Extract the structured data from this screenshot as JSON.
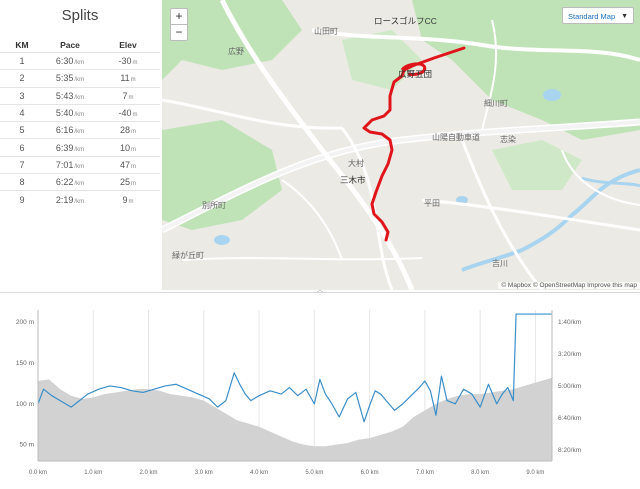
{
  "splits": {
    "title": "Splits",
    "columns": [
      "KM",
      "Pace",
      "Elev"
    ],
    "pace_unit": "/km",
    "elev_unit": "m",
    "rows": [
      {
        "km": "1",
        "pace": "6:30",
        "elev": "-30"
      },
      {
        "km": "2",
        "pace": "5:35",
        "elev": "11"
      },
      {
        "km": "3",
        "pace": "5:43",
        "elev": "7"
      },
      {
        "km": "4",
        "pace": "5:40",
        "elev": "-40"
      },
      {
        "km": "5",
        "pace": "6:16",
        "elev": "28"
      },
      {
        "km": "6",
        "pace": "6:39",
        "elev": "10"
      },
      {
        "km": "7",
        "pace": "7:01",
        "elev": "47"
      },
      {
        "km": "8",
        "pace": "6:22",
        "elev": "25"
      },
      {
        "km": "9",
        "pace": "2:19",
        "elev": "9"
      }
    ]
  },
  "map": {
    "zoom_in": "+",
    "zoom_out": "−",
    "map_type": "Standard Map",
    "attribution": "© Mapbox © OpenStreetMap Improve this map",
    "labels": [
      {
        "text": "ロースゴルフCC",
        "cls": "dark"
      },
      {
        "text": "山田町",
        "cls": ""
      },
      {
        "text": "広野",
        "cls": ""
      },
      {
        "text": "広野五団",
        "cls": "dark"
      },
      {
        "text": "細川町",
        "cls": ""
      },
      {
        "text": "山陽自動車道",
        "cls": ""
      },
      {
        "text": "志染",
        "cls": ""
      },
      {
        "text": "三木市",
        "cls": "dark"
      },
      {
        "text": "大村",
        "cls": ""
      },
      {
        "text": "平田",
        "cls": ""
      },
      {
        "text": "別所町",
        "cls": ""
      },
      {
        "text": "緑が丘町",
        "cls": ""
      },
      {
        "text": "吉川",
        "cls": ""
      }
    ]
  },
  "colors": {
    "route": "#e0151b",
    "water": "#a9d4f0",
    "park": "#bfe3b7",
    "pace_line": "#3b8fc9",
    "elevation_fill": "#d2d2d2"
  },
  "chart_data": {
    "type": "area",
    "x_label_unit": "km",
    "x_ticks": [
      "0.0 km",
      "1.0 km",
      "2.0 km",
      "3.0 km",
      "4.0 km",
      "5.0 km",
      "6.0 km",
      "7.0 km",
      "8.0 km",
      "9.0 km"
    ],
    "y_left_ticks": [
      "200 m",
      "150 m",
      "100 m",
      "50 m"
    ],
    "y_left_lim": [
      30,
      215
    ],
    "y_right_ticks": [
      "1:40/km",
      "3:20/km",
      "5:00/km",
      "6:40/km",
      "8:20/km"
    ],
    "series": [
      {
        "kind": "elevation_area",
        "x": [
          0,
          0.2,
          0.4,
          0.6,
          0.8,
          1.0,
          1.2,
          1.4,
          1.6,
          1.8,
          2.0,
          2.2,
          2.4,
          2.6,
          2.8,
          3.0,
          3.2,
          3.4,
          3.6,
          3.8,
          4.0,
          4.2,
          4.4,
          4.6,
          4.8,
          5.0,
          5.2,
          5.4,
          5.6,
          5.8,
          6.0,
          6.2,
          6.4,
          6.6,
          6.8,
          7.0,
          7.2,
          7.4,
          7.6,
          7.8,
          8.0,
          8.2,
          8.4,
          8.6,
          8.8,
          9.0,
          9.3
        ],
        "y": [
          128,
          130,
          118,
          110,
          106,
          108,
          112,
          114,
          116,
          118,
          118,
          116,
          112,
          110,
          108,
          104,
          96,
          88,
          80,
          76,
          72,
          66,
          60,
          54,
          50,
          48,
          48,
          50,
          52,
          56,
          58,
          62,
          66,
          72,
          84,
          92,
          100,
          106,
          110,
          112,
          112,
          114,
          116,
          118,
          122,
          126,
          132
        ]
      },
      {
        "kind": "pace_line",
        "x": [
          0,
          0.1,
          0.25,
          0.45,
          0.6,
          0.75,
          0.9,
          1.1,
          1.3,
          1.5,
          1.7,
          1.9,
          2.1,
          2.3,
          2.5,
          2.7,
          2.9,
          3.1,
          3.25,
          3.4,
          3.55,
          3.65,
          3.75,
          3.85,
          4.0,
          4.2,
          4.4,
          4.55,
          4.7,
          4.85,
          5.0,
          5.1,
          5.2,
          5.3,
          5.45,
          5.6,
          5.75,
          5.9,
          6.0,
          6.1,
          6.2,
          6.3,
          6.45,
          6.6,
          6.75,
          6.9,
          7.0,
          7.1,
          7.2,
          7.3,
          7.4,
          7.55,
          7.7,
          7.85,
          8.0,
          8.15,
          8.3,
          8.4,
          8.5,
          8.6,
          8.65,
          8.7,
          9.3
        ],
        "y": [
          100,
          118,
          110,
          102,
          96,
          104,
          112,
          118,
          122,
          120,
          116,
          114,
          118,
          122,
          124,
          118,
          112,
          106,
          96,
          104,
          138,
          124,
          112,
          104,
          110,
          116,
          112,
          120,
          110,
          118,
          100,
          130,
          112,
          102,
          84,
          106,
          114,
          78,
          98,
          116,
          112,
          104,
          92,
          100,
          110,
          120,
          128,
          116,
          86,
          134,
          104,
          100,
          118,
          112,
          96,
          124,
          100,
          112,
          120,
          104,
          210,
          210,
          210
        ]
      }
    ]
  }
}
